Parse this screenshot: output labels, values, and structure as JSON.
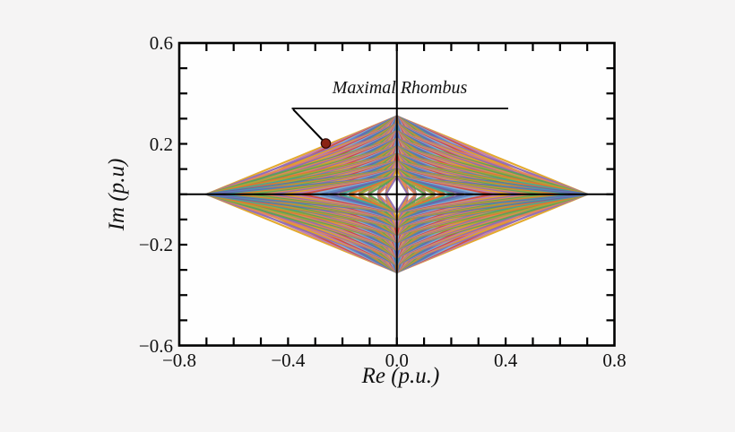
{
  "chart_data": {
    "type": "line",
    "title": "",
    "xlabel": "Re (p.u.)",
    "ylabel": "Im (p.u)",
    "xlim": [
      -0.8,
      0.8
    ],
    "ylim": [
      -0.6,
      0.6
    ],
    "minor_tick_step": 0.1,
    "x_major_ticks": [
      -0.8,
      -0.4,
      0.0,
      0.4,
      0.8
    ],
    "x_tick_labels": [
      "−0.8",
      "−0.4",
      "0.0",
      "0.4",
      "0.8"
    ],
    "y_major_ticks": [
      0.6,
      0.2,
      -0.2,
      -0.6
    ],
    "y_tick_labels": [
      "0.6",
      "0.2",
      "−0.2",
      "−0.6"
    ],
    "grid": false,
    "legend": false,
    "layout": {
      "background": "#f5f4f4",
      "plot_background": "#fefefe",
      "axis_color": "#000000",
      "zero_lines": true
    },
    "annotation": {
      "label": "Maximal Rhombus",
      "marker_color": "#8a2313",
      "marker_at": {
        "re": -0.26,
        "im": 0.2
      }
    },
    "maximal_rhombus": {
      "re_vertices": [
        -0.7,
        0.7
      ],
      "im_vertices": [
        -0.31,
        0.31
      ]
    },
    "rhombus_family": {
      "description": "Family of concentric rhombi centered at the origin; every combination of a real-axis half-width and an imaginary-axis half-height, bounded by the maximal rhombus.",
      "re_half_widths": [
        0.7,
        0.665,
        0.63,
        0.595,
        0.56,
        0.525,
        0.49,
        0.455,
        0.42,
        0.385,
        0.35,
        0.315,
        0.28,
        0.245,
        0.21,
        0.175,
        0.14,
        0.105,
        0.07,
        0.04
      ],
      "im_half_heights": [
        0.31,
        0.28,
        0.25,
        0.22,
        0.19,
        0.16,
        0.13,
        0.1,
        0.07
      ],
      "palette": [
        "#e2a422",
        "#e4742e",
        "#d24a38",
        "#58a356",
        "#5c83c4",
        "#8e6db6",
        "#3fa4a0",
        "#bd7bae",
        "#a6a73c",
        "#85aed6",
        "#e2855c",
        "#6b5fa8"
      ]
    }
  }
}
